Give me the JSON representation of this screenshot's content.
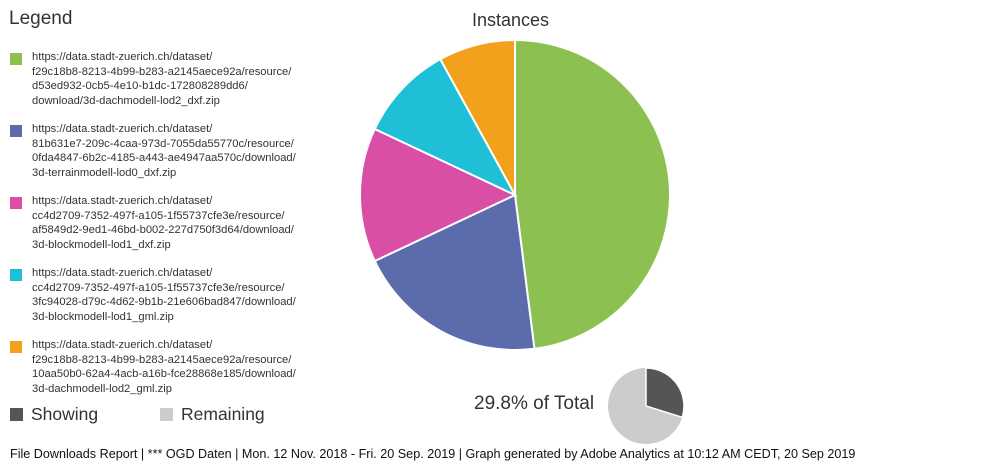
{
  "legend": {
    "title": "Legend"
  },
  "summary": {
    "showing_label": "Showing",
    "remaining_label": "Remaining",
    "percent_text": "29.8% of Total",
    "showing_fraction": 0.298,
    "showing_color": "#555555",
    "remaining_color": "#cccccc"
  },
  "footer": {
    "text": "File Downloads Report | *** OGD Daten | Mon. 12 Nov. 2018 - Fri. 20 Sep. 2019 | Graph generated by Adobe Analytics at 10:12 AM CEDT, 20 Sep 2019"
  },
  "chart_data": {
    "type": "pie",
    "title": "Instances",
    "legend_position": "left",
    "slices": [
      {
        "label": "https://data.stadt-zuerich.ch/dataset/\nf29c18b8-8213-4b99-b283-a2145aece92a/resource/\nd53ed932-0cb5-4e10-b1dc-172808289dd6/\ndownload/3d-dachmodell-lod2_dxf.zip",
        "value": 48,
        "color": "#8cc152"
      },
      {
        "label": "https://data.stadt-zuerich.ch/dataset/\n81b631e7-209c-4caa-973d-7055da55770c/resource/\n0fda4847-6b2c-4185-a443-ae4947aa570c/download/\n3d-terrainmodell-lod0_dxf.zip",
        "value": 20,
        "color": "#5b6bab"
      },
      {
        "label": "https://data.stadt-zuerich.ch/dataset/\ncc4d2709-7352-497f-a105-1f55737cfe3e/resource/\naf5849d2-9ed1-46bd-b002-227d750f3d64/download/\n3d-blockmodell-lod1_dxf.zip",
        "value": 14,
        "color": "#d84fa5"
      },
      {
        "label": "https://data.stadt-zuerich.ch/dataset/\ncc4d2709-7352-497f-a105-1f55737cfe3e/resource/\n3fc94028-d79c-4d62-9b1b-21e606bad847/download/\n3d-blockmodell-lod1_gml.zip",
        "value": 10,
        "color": "#1fbfd8"
      },
      {
        "label": "https://data.stadt-zuerich.ch/dataset/\nf29c18b8-8213-4b99-b283-a2145aece92a/resource/\n10aa50b0-62a4-4acb-a16b-fce28868e185/download/\n3d-dachmodell-lod2_gml.zip",
        "value": 8,
        "color": "#f3a11d"
      }
    ]
  }
}
